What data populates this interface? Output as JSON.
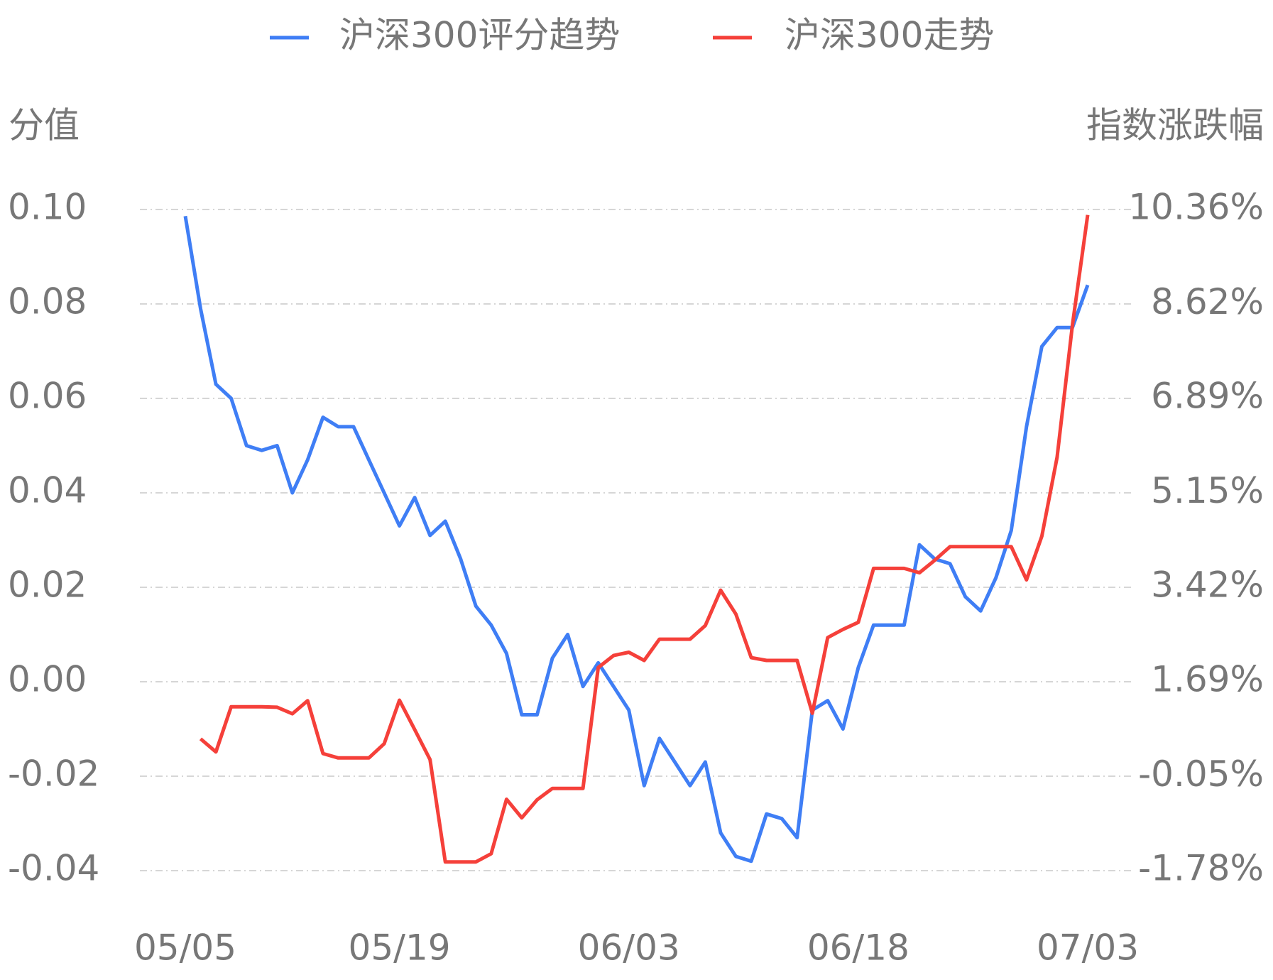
{
  "chart_data": {
    "type": "line",
    "legend": "top",
    "grid": true,
    "y_label": "分值",
    "y2_label": "指数涨跌幅",
    "categories": [
      "05/05",
      null,
      null,
      null,
      null,
      null,
      null,
      null,
      null,
      null,
      null,
      null,
      null,
      null,
      "05/19",
      null,
      null,
      null,
      null,
      null,
      null,
      null,
      null,
      null,
      null,
      null,
      null,
      null,
      null,
      "06/03",
      null,
      null,
      null,
      null,
      null,
      null,
      null,
      null,
      null,
      null,
      null,
      null,
      null,
      null,
      "06/18",
      null,
      null,
      null,
      null,
      null,
      null,
      null,
      null,
      null,
      null,
      null,
      null,
      null,
      null,
      "07/03"
    ],
    "ylim": [
      -0.04,
      0.1
    ],
    "yticks": [
      {
        "value": 0.1,
        "label": "0.10"
      },
      {
        "value": 0.08,
        "label": "0.08"
      },
      {
        "value": 0.06,
        "label": "0.06"
      },
      {
        "value": 0.04,
        "label": "0.04"
      },
      {
        "value": 0.02,
        "label": "0.02"
      },
      {
        "value": 0.0,
        "label": "0.00"
      },
      {
        "value": -0.02,
        "label": "-0.02"
      },
      {
        "value": -0.04,
        "label": "-0.04"
      }
    ],
    "y2lim": [
      -1.78,
      10.36
    ],
    "y2ticks": [
      {
        "value": 10.36,
        "label": "10.36%"
      },
      {
        "value": 8.62,
        "label": "8.62%"
      },
      {
        "value": 6.89,
        "label": "6.89%"
      },
      {
        "value": 5.15,
        "label": "5.15%"
      },
      {
        "value": 3.42,
        "label": "3.42%"
      },
      {
        "value": 1.69,
        "label": "1.69%"
      },
      {
        "value": -0.05,
        "label": "-0.05%"
      },
      {
        "value": -1.78,
        "label": "-1.78%"
      }
    ],
    "series": [
      {
        "name": "沪深300评分趋势",
        "color": "#3f7ef5",
        "axis": "y",
        "values": [
          0.0986,
          0.079,
          0.063,
          0.06,
          0.05,
          0.049,
          0.05,
          0.04,
          0.047,
          0.056,
          0.054,
          0.054,
          0.047,
          0.04,
          0.033,
          0.039,
          0.031,
          0.034,
          0.026,
          0.016,
          0.012,
          0.006,
          -0.007,
          -0.007,
          0.005,
          0.01,
          -0.001,
          0.004,
          -0.001,
          -0.006,
          -0.022,
          -0.012,
          -0.017,
          -0.022,
          -0.017,
          -0.032,
          -0.037,
          -0.038,
          -0.028,
          -0.029,
          -0.033,
          -0.006,
          -0.004,
          -0.01,
          0.003,
          0.012,
          0.012,
          0.012,
          0.029,
          0.026,
          0.025,
          0.018,
          0.015,
          0.022,
          0.032,
          0.054,
          0.071,
          0.075,
          0.075,
          0.084
        ]
      },
      {
        "name": "沪深300走势",
        "color": "#f5403a",
        "axis": "y2",
        "values": [
          null,
          0.64,
          0.4,
          1.23,
          1.23,
          1.23,
          1.22,
          1.1,
          1.34,
          0.37,
          0.29,
          0.29,
          0.29,
          0.55,
          1.35,
          0.81,
          0.26,
          -1.62,
          -1.62,
          -1.62,
          -1.47,
          -0.47,
          -0.81,
          -0.48,
          -0.27,
          -0.27,
          -0.27,
          1.95,
          2.17,
          2.23,
          2.08,
          2.47,
          2.47,
          2.47,
          2.72,
          3.37,
          2.93,
          2.13,
          2.08,
          2.08,
          2.08,
          1.11,
          2.5,
          2.65,
          2.78,
          3.77,
          3.77,
          3.77,
          3.69,
          3.92,
          4.17,
          4.17,
          4.17,
          4.17,
          4.17,
          3.56,
          4.36,
          5.81,
          8.24,
          10.26
        ]
      }
    ]
  }
}
